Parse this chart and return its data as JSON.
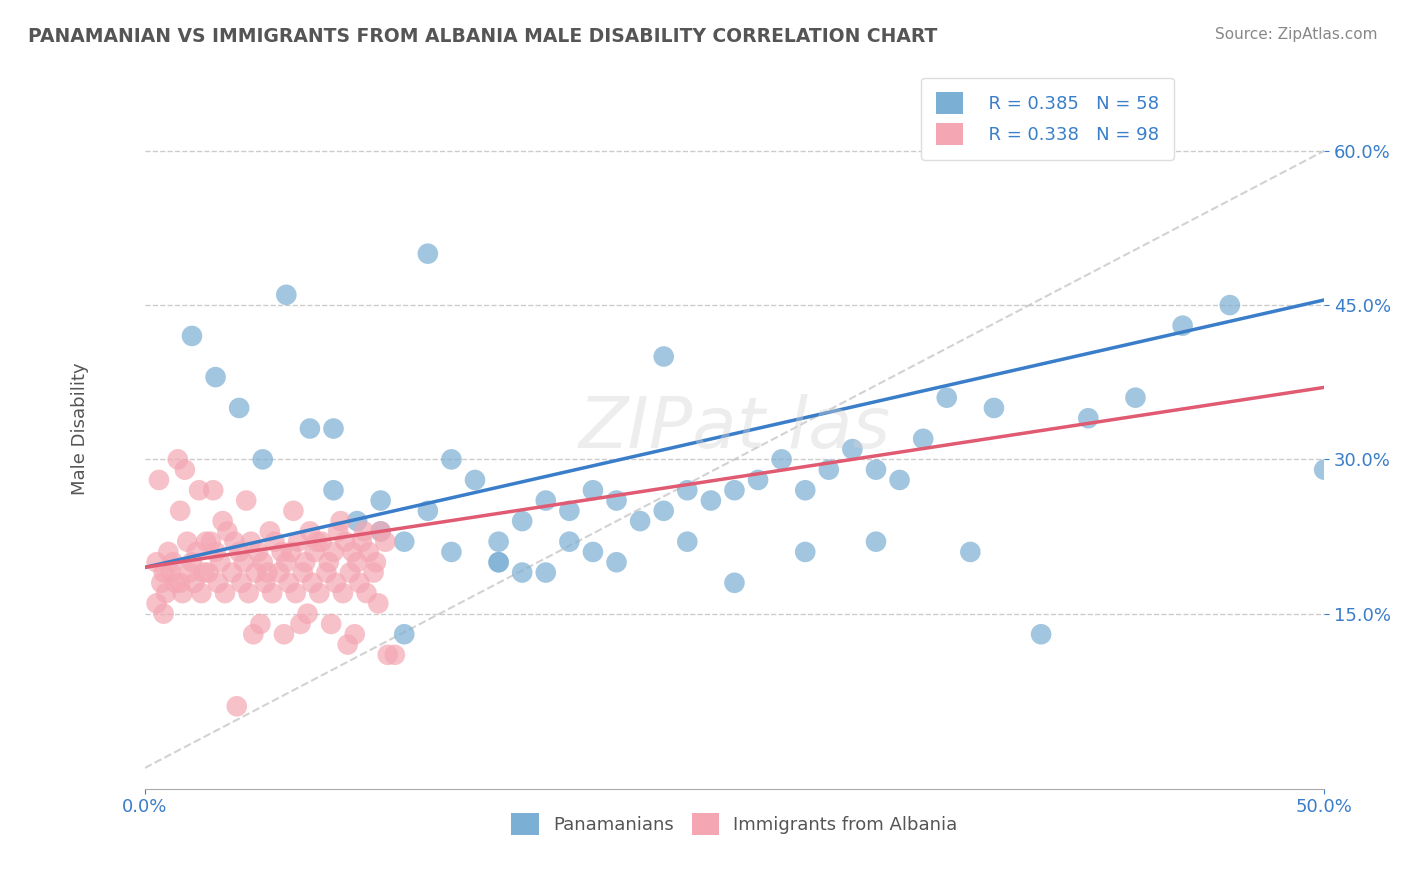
{
  "title": "PANAMANIAN VS IMMIGRANTS FROM ALBANIA MALE DISABILITY CORRELATION CHART",
  "source": "Source: ZipAtlas.com",
  "xlabel_bottom": "",
  "ylabel": "Male Disability",
  "xlim": [
    0.0,
    0.5
  ],
  "ylim": [
    -0.02,
    0.68
  ],
  "xtick_labels": [
    "0.0%",
    "50.0%"
  ],
  "ytick_labels": [
    "15.0%",
    "30.0%",
    "45.0%",
    "60.0%"
  ],
  "ytick_values": [
    0.15,
    0.3,
    0.45,
    0.6
  ],
  "xtick_values": [
    0.0,
    0.5
  ],
  "blue_color": "#7BAFD4",
  "pink_color": "#F4A7B3",
  "blue_line_color": "#3A7DC9",
  "pink_line_color": "#E05A72",
  "diag_line_color": "#C0C0C0",
  "grid_color": "#CCCCCC",
  "legend_R_blue": "R = 0.385",
  "legend_N_blue": "N = 58",
  "legend_R_pink": "R = 0.338",
  "legend_N_pink": "N = 98",
  "blue_R": 0.385,
  "pink_R": 0.338,
  "blue_N": 58,
  "pink_N": 98,
  "blue_scatter_x": [
    0.03,
    0.05,
    0.07,
    0.08,
    0.09,
    0.1,
    0.1,
    0.11,
    0.12,
    0.13,
    0.14,
    0.15,
    0.15,
    0.16,
    0.16,
    0.17,
    0.18,
    0.18,
    0.19,
    0.2,
    0.21,
    0.22,
    0.23,
    0.24,
    0.25,
    0.26,
    0.27,
    0.28,
    0.29,
    0.3,
    0.31,
    0.32,
    0.33,
    0.34,
    0.36,
    0.38,
    0.4,
    0.42,
    0.44,
    0.46,
    0.02,
    0.04,
    0.06,
    0.13,
    0.17,
    0.19,
    0.2,
    0.23,
    0.25,
    0.28,
    0.31,
    0.35,
    0.5,
    0.12,
    0.22,
    0.15,
    0.08,
    0.11
  ],
  "blue_scatter_y": [
    0.38,
    0.3,
    0.33,
    0.27,
    0.24,
    0.26,
    0.23,
    0.22,
    0.25,
    0.21,
    0.28,
    0.22,
    0.2,
    0.24,
    0.19,
    0.26,
    0.25,
    0.22,
    0.27,
    0.26,
    0.24,
    0.25,
    0.27,
    0.26,
    0.27,
    0.28,
    0.3,
    0.27,
    0.29,
    0.31,
    0.29,
    0.28,
    0.32,
    0.36,
    0.35,
    0.13,
    0.34,
    0.36,
    0.43,
    0.45,
    0.42,
    0.35,
    0.46,
    0.3,
    0.19,
    0.21,
    0.2,
    0.22,
    0.18,
    0.21,
    0.22,
    0.21,
    0.29,
    0.5,
    0.4,
    0.2,
    0.33,
    0.13
  ],
  "pink_scatter_x": [
    0.005,
    0.008,
    0.01,
    0.012,
    0.015,
    0.018,
    0.02,
    0.022,
    0.025,
    0.028,
    0.03,
    0.032,
    0.035,
    0.038,
    0.04,
    0.042,
    0.045,
    0.048,
    0.05,
    0.052,
    0.055,
    0.058,
    0.06,
    0.062,
    0.065,
    0.068,
    0.07,
    0.072,
    0.075,
    0.078,
    0.08,
    0.082,
    0.085,
    0.088,
    0.09,
    0.092,
    0.095,
    0.098,
    0.1,
    0.102,
    0.005,
    0.007,
    0.009,
    0.011,
    0.013,
    0.016,
    0.019,
    0.021,
    0.024,
    0.027,
    0.031,
    0.034,
    0.037,
    0.041,
    0.044,
    0.047,
    0.051,
    0.054,
    0.057,
    0.061,
    0.064,
    0.067,
    0.071,
    0.074,
    0.077,
    0.081,
    0.084,
    0.087,
    0.091,
    0.094,
    0.097,
    0.008,
    0.015,
    0.023,
    0.033,
    0.043,
    0.053,
    0.063,
    0.073,
    0.083,
    0.093,
    0.103,
    0.006,
    0.017,
    0.029,
    0.039,
    0.049,
    0.059,
    0.069,
    0.079,
    0.089,
    0.099,
    0.014,
    0.026,
    0.046,
    0.066,
    0.086,
    0.106
  ],
  "pink_scatter_y": [
    0.2,
    0.19,
    0.21,
    0.2,
    0.18,
    0.22,
    0.2,
    0.21,
    0.19,
    0.22,
    0.21,
    0.2,
    0.23,
    0.22,
    0.21,
    0.2,
    0.22,
    0.21,
    0.2,
    0.19,
    0.22,
    0.21,
    0.2,
    0.21,
    0.22,
    0.2,
    0.23,
    0.21,
    0.22,
    0.2,
    0.21,
    0.23,
    0.22,
    0.21,
    0.2,
    0.22,
    0.21,
    0.2,
    0.23,
    0.22,
    0.16,
    0.18,
    0.17,
    0.19,
    0.18,
    0.17,
    0.19,
    0.18,
    0.17,
    0.19,
    0.18,
    0.17,
    0.19,
    0.18,
    0.17,
    0.19,
    0.18,
    0.17,
    0.19,
    0.18,
    0.17,
    0.19,
    0.18,
    0.17,
    0.19,
    0.18,
    0.17,
    0.19,
    0.18,
    0.17,
    0.19,
    0.15,
    0.25,
    0.27,
    0.24,
    0.26,
    0.23,
    0.25,
    0.22,
    0.24,
    0.23,
    0.11,
    0.28,
    0.29,
    0.27,
    0.06,
    0.14,
    0.13,
    0.15,
    0.14,
    0.13,
    0.16,
    0.3,
    0.22,
    0.13,
    0.14,
    0.12,
    0.11
  ]
}
